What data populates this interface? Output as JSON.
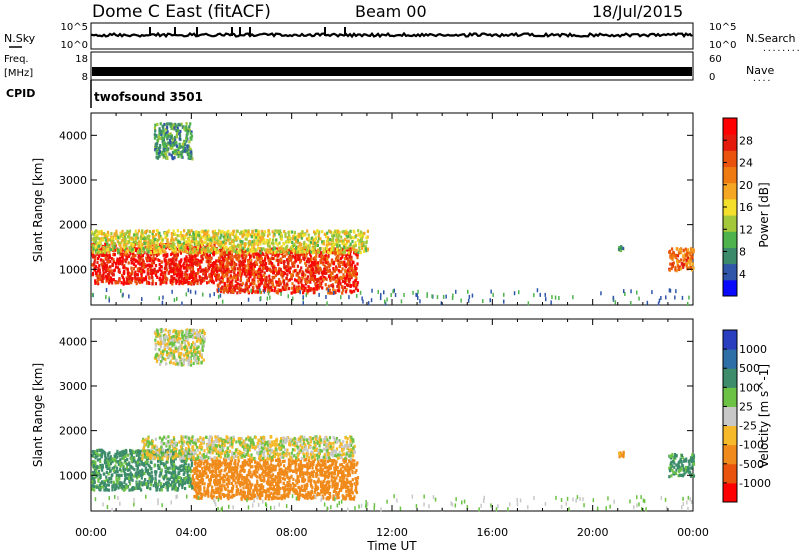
{
  "header": {
    "title": "Dome C East (fitACF)",
    "beam": "Beam 00",
    "date": "18/Jul/2015"
  },
  "panels": {
    "nsky": {
      "left_label": "N.Sky",
      "left_top_tick": "10^5",
      "left_bottom_tick": "10^0",
      "right_top_tick": "10^5",
      "right_bottom_tick": "10^0",
      "right_label": "N.Search",
      "right_marker": "........"
    },
    "freq": {
      "left_label_1": "Freq.",
      "left_label_2": "[MHz]",
      "left_top_tick": "18",
      "left_bottom_tick": "8",
      "right_top_tick": "60",
      "right_bottom_tick": "0",
      "right_label": "Nave",
      "right_marker": "...."
    },
    "cpid": {
      "label": "CPID",
      "value": "twofsound 3501"
    }
  },
  "colorbars": {
    "power": {
      "label": "Power [dB]",
      "ticks": [
        "28",
        "24",
        "20",
        "16",
        "12",
        "8",
        "4"
      ],
      "colors": [
        "#0a0aff",
        "#2f56a8",
        "#3b8a6b",
        "#4fb34d",
        "#a3c83a",
        "#f4e02c",
        "#f5a623",
        "#ef7a12",
        "#e9530b",
        "#e31a0c",
        "#ff0000"
      ]
    },
    "velocity": {
      "label": "Velocity [m s^-1]",
      "ticks": [
        "1000",
        "500",
        "100",
        "25",
        "-25",
        "-100",
        "-500",
        "-1000"
      ],
      "colors": [
        "#2a3fbf",
        "#2f6fa8",
        "#3d8c6b",
        "#6cc244",
        "#c8c8c8",
        "#f5b92a",
        "#f08a1a",
        "#e9530b",
        "#ff0000"
      ]
    }
  },
  "chart_data": [
    {
      "type": "heatmap",
      "title": "Power",
      "ylabel": "Slant Range [km]",
      "yticks": [
        "1000",
        "2000",
        "3000",
        "4000"
      ],
      "ylim": [
        200,
        4500
      ],
      "xlim": [
        0,
        24
      ],
      "colorbar": "Power [dB]",
      "regions": [
        {
          "x": [
            0.0,
            5.0
          ],
          "y": [
            700,
            1600
          ],
          "value": 28
        },
        {
          "x": [
            5.0,
            10.6
          ],
          "y": [
            500,
            1500
          ],
          "value": 26
        },
        {
          "x": [
            0.0,
            11.0
          ],
          "y": [
            1400,
            1900
          ],
          "value": 14
        },
        {
          "x": [
            2.5,
            4.0
          ],
          "y": [
            3500,
            4300
          ],
          "value": 8
        },
        {
          "x": [
            23.0,
            24.0
          ],
          "y": [
            1000,
            1500
          ],
          "value": 22
        },
        {
          "x": [
            21.0,
            21.2
          ],
          "y": [
            1450,
            1550
          ],
          "value": 8
        }
      ]
    },
    {
      "type": "heatmap",
      "title": "Velocity",
      "xlabel": "Time UT",
      "ylabel": "Slant Range [km]",
      "xticks": [
        "00:00",
        "04:00",
        "08:00",
        "12:00",
        "16:00",
        "20:00",
        "00:00"
      ],
      "yticks": [
        "1000",
        "2000",
        "3000",
        "4000"
      ],
      "ylim": [
        200,
        4500
      ],
      "xlim": [
        0,
        24
      ],
      "colorbar": "Velocity [m s^-1]",
      "regions": [
        {
          "x": [
            0.0,
            4.0
          ],
          "y": [
            700,
            1600
          ],
          "value": 150
        },
        {
          "x": [
            4.0,
            10.6
          ],
          "y": [
            500,
            1400
          ],
          "value": -300
        },
        {
          "x": [
            2.0,
            10.5
          ],
          "y": [
            1400,
            1900
          ],
          "value": 0
        },
        {
          "x": [
            2.5,
            4.5
          ],
          "y": [
            3500,
            4300
          ],
          "value": 0
        },
        {
          "x": [
            23.0,
            24.0
          ],
          "y": [
            1000,
            1500
          ],
          "value": 150
        },
        {
          "x": [
            21.0,
            21.2
          ],
          "y": [
            1450,
            1550
          ],
          "value": -150
        }
      ]
    }
  ],
  "footer": {
    "xlabel": "Time UT"
  }
}
